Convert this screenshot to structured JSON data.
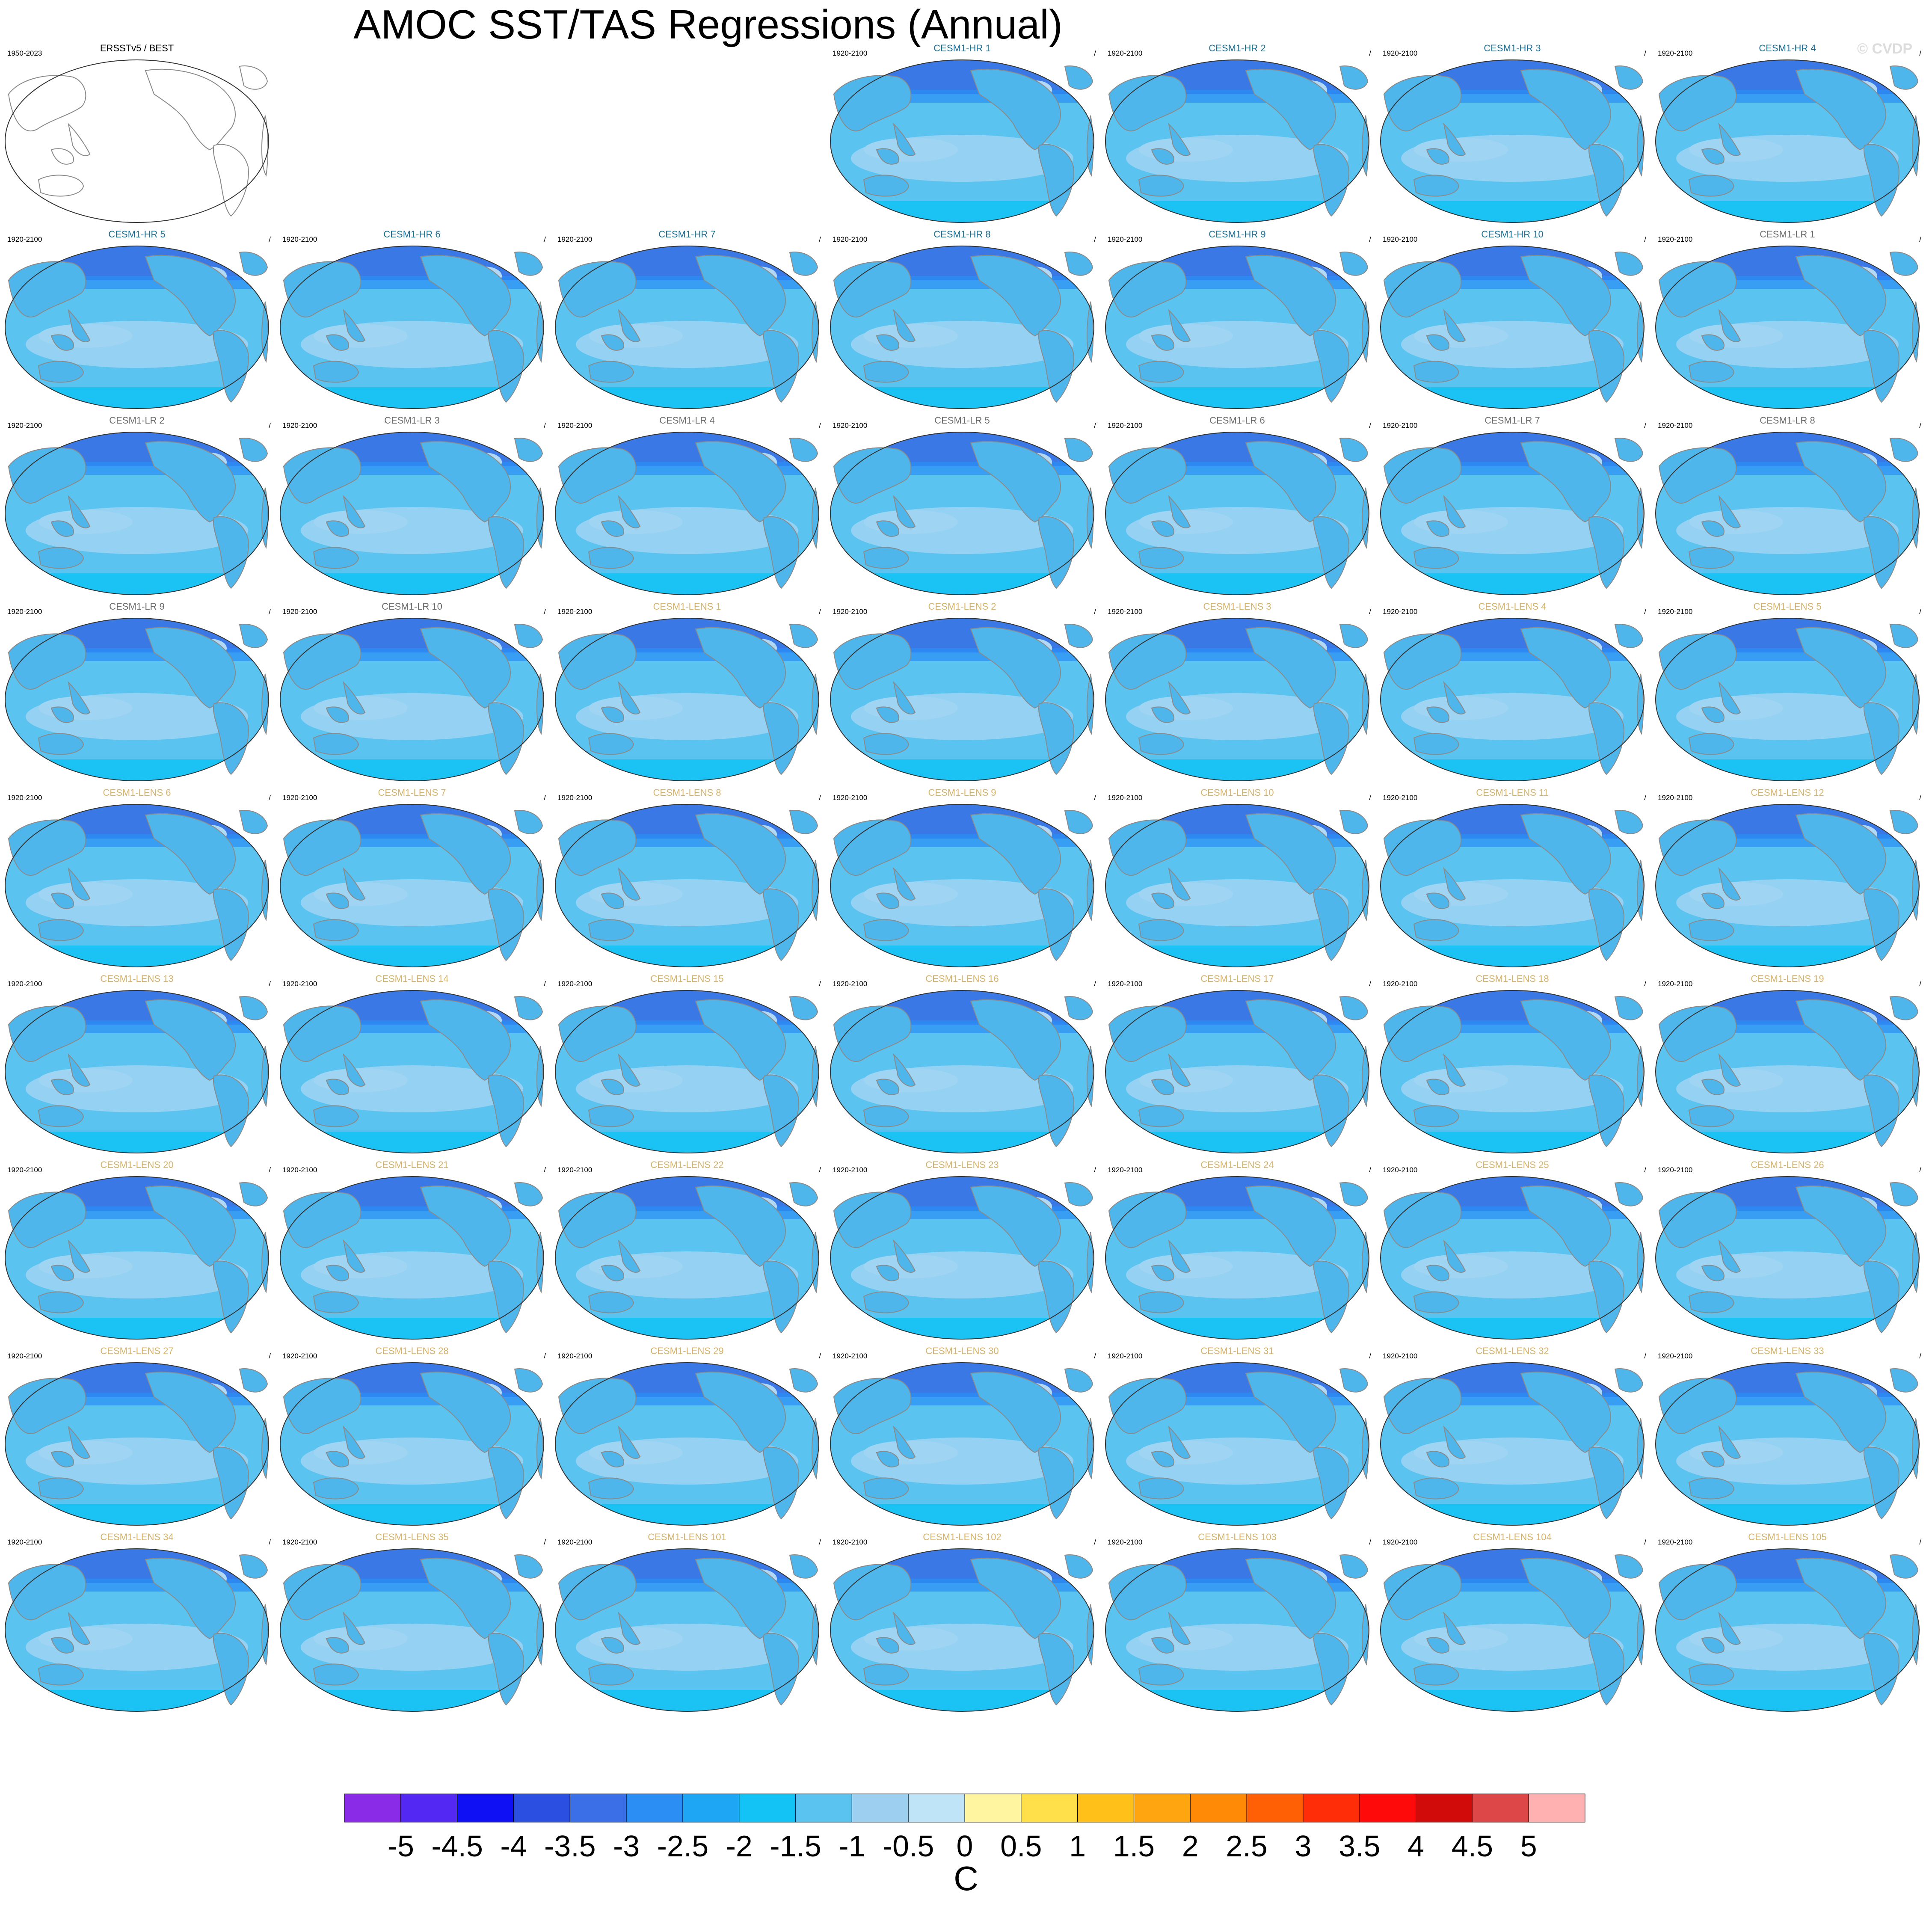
{
  "page": {
    "title": "AMOC SST/TAS Regressions (Annual)",
    "watermark": "© CVDP",
    "colorbar_unit": "C"
  },
  "colors": {
    "title_hr": "#1a6e94",
    "title_lr": "#6d6d6d",
    "title_lens": "#d6b36a",
    "title_obs": "#000000",
    "ocean_base": "#5ac3f0",
    "ocean_light": "#9fd4f2",
    "high_lat": "#3a78e6",
    "land_outline": "#8a8a8a"
  },
  "observation_panel": {
    "title": "ERSSTv5 / BEST",
    "period": "1950-2023",
    "right_label": ""
  },
  "panels": [
    {
      "title": "CESM1-HR 1",
      "period": "1920-2100",
      "right": "/",
      "group": "hr"
    },
    {
      "title": "CESM1-HR 2",
      "period": "1920-2100",
      "right": "/",
      "group": "hr"
    },
    {
      "title": "CESM1-HR 3",
      "period": "1920-2100",
      "right": "/",
      "group": "hr"
    },
    {
      "title": "CESM1-HR 4",
      "period": "1920-2100",
      "right": "/",
      "group": "hr"
    },
    {
      "title": "CESM1-HR 5",
      "period": "1920-2100",
      "right": "/",
      "group": "hr"
    },
    {
      "title": "CESM1-HR 6",
      "period": "1920-2100",
      "right": "/",
      "group": "hr"
    },
    {
      "title": "CESM1-HR 7",
      "period": "1920-2100",
      "right": "/",
      "group": "hr"
    },
    {
      "title": "CESM1-HR 8",
      "period": "1920-2100",
      "right": "/",
      "group": "hr"
    },
    {
      "title": "CESM1-HR 9",
      "period": "1920-2100",
      "right": "/",
      "group": "hr"
    },
    {
      "title": "CESM1-HR 10",
      "period": "1920-2100",
      "right": "/",
      "group": "hr"
    },
    {
      "title": "CESM1-LR 1",
      "period": "1920-2100",
      "right": "/",
      "group": "lr"
    },
    {
      "title": "CESM1-LR 2",
      "period": "1920-2100",
      "right": "/",
      "group": "lr"
    },
    {
      "title": "CESM1-LR 3",
      "period": "1920-2100",
      "right": "/",
      "group": "lr"
    },
    {
      "title": "CESM1-LR 4",
      "period": "1920-2100",
      "right": "/",
      "group": "lr"
    },
    {
      "title": "CESM1-LR 5",
      "period": "1920-2100",
      "right": "/",
      "group": "lr"
    },
    {
      "title": "CESM1-LR 6",
      "period": "1920-2100",
      "right": "/",
      "group": "lr"
    },
    {
      "title": "CESM1-LR 7",
      "period": "1920-2100",
      "right": "/",
      "group": "lr"
    },
    {
      "title": "CESM1-LR 8",
      "period": "1920-2100",
      "right": "/",
      "group": "lr"
    },
    {
      "title": "CESM1-LR 9",
      "period": "1920-2100",
      "right": "/",
      "group": "lr"
    },
    {
      "title": "CESM1-LR 10",
      "period": "1920-2100",
      "right": "/",
      "group": "lr"
    },
    {
      "title": "CESM1-LENS 1",
      "period": "1920-2100",
      "right": "/",
      "group": "lens"
    },
    {
      "title": "CESM1-LENS 2",
      "period": "1920-2100",
      "right": "/",
      "group": "lens"
    },
    {
      "title": "CESM1-LENS 3",
      "period": "1920-2100",
      "right": "/",
      "group": "lens"
    },
    {
      "title": "CESM1-LENS 4",
      "period": "1920-2100",
      "right": "/",
      "group": "lens"
    },
    {
      "title": "CESM1-LENS 5",
      "period": "1920-2100",
      "right": "/",
      "group": "lens"
    },
    {
      "title": "CESM1-LENS 6",
      "period": "1920-2100",
      "right": "/",
      "group": "lens"
    },
    {
      "title": "CESM1-LENS 7",
      "period": "1920-2100",
      "right": "/",
      "group": "lens"
    },
    {
      "title": "CESM1-LENS 8",
      "period": "1920-2100",
      "right": "/",
      "group": "lens"
    },
    {
      "title": "CESM1-LENS 9",
      "period": "1920-2100",
      "right": "/",
      "group": "lens"
    },
    {
      "title": "CESM1-LENS 10",
      "period": "1920-2100",
      "right": "/",
      "group": "lens"
    },
    {
      "title": "CESM1-LENS 11",
      "period": "1920-2100",
      "right": "/",
      "group": "lens"
    },
    {
      "title": "CESM1-LENS 12",
      "period": "1920-2100",
      "right": "/",
      "group": "lens"
    },
    {
      "title": "CESM1-LENS 13",
      "period": "1920-2100",
      "right": "/",
      "group": "lens"
    },
    {
      "title": "CESM1-LENS 14",
      "period": "1920-2100",
      "right": "/",
      "group": "lens"
    },
    {
      "title": "CESM1-LENS 15",
      "period": "1920-2100",
      "right": "/",
      "group": "lens"
    },
    {
      "title": "CESM1-LENS 16",
      "period": "1920-2100",
      "right": "/",
      "group": "lens"
    },
    {
      "title": "CESM1-LENS 17",
      "period": "1920-2100",
      "right": "/",
      "group": "lens"
    },
    {
      "title": "CESM1-LENS 18",
      "period": "1920-2100",
      "right": "/",
      "group": "lens"
    },
    {
      "title": "CESM1-LENS 19",
      "period": "1920-2100",
      "right": "/",
      "group": "lens"
    },
    {
      "title": "CESM1-LENS 20",
      "period": "1920-2100",
      "right": "/",
      "group": "lens"
    },
    {
      "title": "CESM1-LENS 21",
      "period": "1920-2100",
      "right": "/",
      "group": "lens"
    },
    {
      "title": "CESM1-LENS 22",
      "period": "1920-2100",
      "right": "/",
      "group": "lens"
    },
    {
      "title": "CESM1-LENS 23",
      "period": "1920-2100",
      "right": "/",
      "group": "lens"
    },
    {
      "title": "CESM1-LENS 24",
      "period": "1920-2100",
      "right": "/",
      "group": "lens"
    },
    {
      "title": "CESM1-LENS 25",
      "period": "1920-2100",
      "right": "/",
      "group": "lens"
    },
    {
      "title": "CESM1-LENS 26",
      "period": "1920-2100",
      "right": "/",
      "group": "lens"
    },
    {
      "title": "CESM1-LENS 27",
      "period": "1920-2100",
      "right": "/",
      "group": "lens"
    },
    {
      "title": "CESM1-LENS 28",
      "period": "1920-2100",
      "right": "/",
      "group": "lens"
    },
    {
      "title": "CESM1-LENS 29",
      "period": "1920-2100",
      "right": "/",
      "group": "lens"
    },
    {
      "title": "CESM1-LENS 30",
      "period": "1920-2100",
      "right": "/",
      "group": "lens"
    },
    {
      "title": "CESM1-LENS 31",
      "period": "1920-2100",
      "right": "/",
      "group": "lens"
    },
    {
      "title": "CESM1-LENS 32",
      "period": "1920-2100",
      "right": "/",
      "group": "lens"
    },
    {
      "title": "CESM1-LENS 33",
      "period": "1920-2100",
      "right": "/",
      "group": "lens"
    },
    {
      "title": "CESM1-LENS 34",
      "period": "1920-2100",
      "right": "/",
      "group": "lens"
    },
    {
      "title": "CESM1-LENS 35",
      "period": "1920-2100",
      "right": "/",
      "group": "lens"
    },
    {
      "title": "CESM1-LENS 101",
      "period": "1920-2100",
      "right": "/",
      "group": "lens"
    },
    {
      "title": "CESM1-LENS 102",
      "period": "1920-2100",
      "right": "/",
      "group": "lens"
    },
    {
      "title": "CESM1-LENS 103",
      "period": "1920-2100",
      "right": "/",
      "group": "lens"
    },
    {
      "title": "CESM1-LENS 104",
      "period": "1920-2100",
      "right": "/",
      "group": "lens"
    },
    {
      "title": "CESM1-LENS 105",
      "period": "1920-2100",
      "right": "/",
      "group": "lens"
    }
  ],
  "colorbar": {
    "colors": [
      "#8a2be8",
      "#5228f2",
      "#1010f5",
      "#2b4fe0",
      "#3a6fe8",
      "#2a8ef5",
      "#1ea6f5",
      "#14c3f5",
      "#5ac3f0",
      "#9dcff0",
      "#bfe3f7",
      "#fff5a0",
      "#ffe04a",
      "#ffc01a",
      "#ffa50f",
      "#ff8a05",
      "#ff5f05",
      "#ff2d08",
      "#ff0a0a",
      "#d10a0a",
      "#de4747",
      "#ffb0b0"
    ],
    "labels": [
      "-5",
      "-4.5",
      "-4",
      "-3.5",
      "-3",
      "-2.5",
      "-2",
      "-1.5",
      "-1",
      "-0.5",
      "0",
      "0.5",
      "1",
      "1.5",
      "2",
      "2.5",
      "3",
      "3.5",
      "4",
      "4.5",
      "5"
    ]
  }
}
